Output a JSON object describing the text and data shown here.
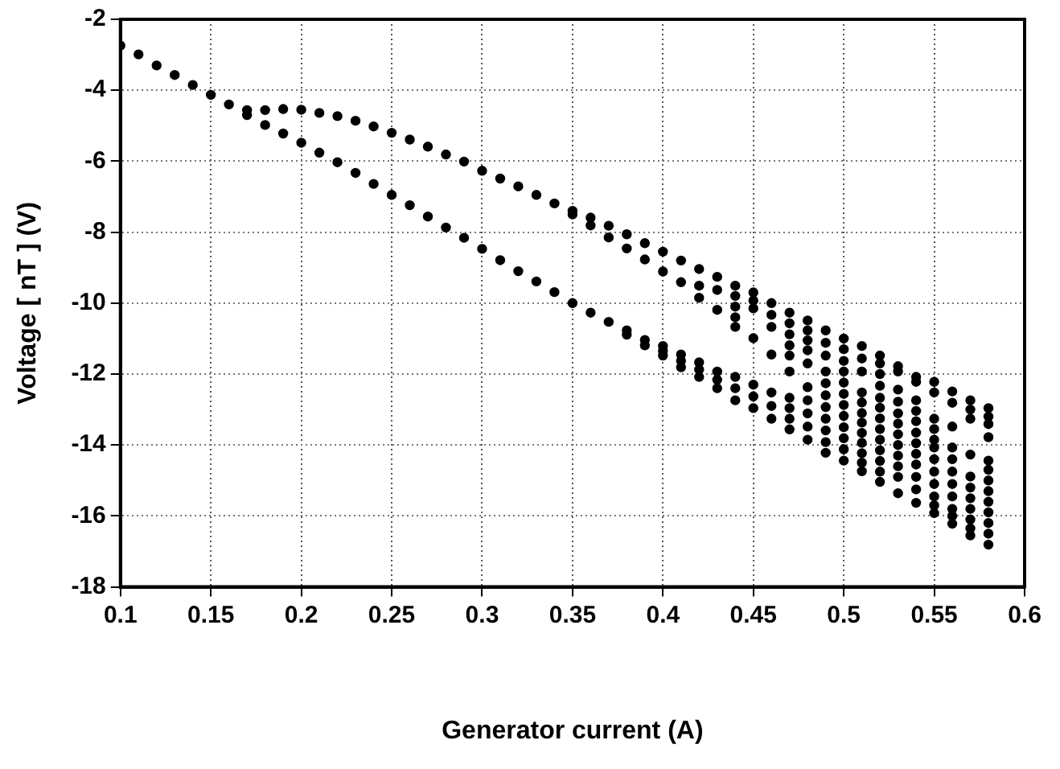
{
  "chart_data": {
    "type": "scatter",
    "xlabel": "Generator current (A)",
    "ylabel": "Voltage [ nT ] (V)",
    "xlim": [
      0.1,
      0.6
    ],
    "xticks": [
      0.1,
      0.15,
      0.2,
      0.25,
      0.3,
      0.35,
      0.4,
      0.45,
      0.5,
      0.55,
      0.6
    ],
    "ylim": [
      -18,
      -2
    ],
    "yticks": [
      -18,
      -16,
      -14,
      -12,
      -10,
      -8,
      -6,
      -4,
      -2
    ],
    "grid": true,
    "marker": "circle",
    "series": [
      {
        "color": "#000000",
        "x": [
          0.1,
          0.11,
          0.12,
          0.13,
          0.14,
          0.15,
          0.16,
          0.17,
          0.17,
          0.18,
          0.18,
          0.19,
          0.19,
          0.2,
          0.2,
          0.21,
          0.21,
          0.22,
          0.22,
          0.23,
          0.23,
          0.24,
          0.24,
          0.25,
          0.25,
          0.26,
          0.26,
          0.27,
          0.27,
          0.28,
          0.28,
          0.29,
          0.29,
          0.3,
          0.3,
          0.31,
          0.31,
          0.32,
          0.32,
          0.33,
          0.33,
          0.34,
          0.34,
          0.35,
          0.35,
          0.35,
          0.36,
          0.36,
          0.36,
          0.37,
          0.37,
          0.37,
          0.38,
          0.38,
          0.38,
          0.38,
          0.39,
          0.39,
          0.39,
          0.39,
          0.4,
          0.4,
          0.4,
          0.4,
          0.4,
          0.41,
          0.41,
          0.41,
          0.41,
          0.41,
          0.42,
          0.42,
          0.42,
          0.42,
          0.42,
          0.42,
          0.43,
          0.43,
          0.43,
          0.43,
          0.43,
          0.43,
          0.44,
          0.44,
          0.44,
          0.44,
          0.44,
          0.44,
          0.44,
          0.44,
          0.45,
          0.45,
          0.45,
          0.45,
          0.45,
          0.45,
          0.45,
          0.46,
          0.46,
          0.46,
          0.46,
          0.46,
          0.46,
          0.46,
          0.47,
          0.47,
          0.47,
          0.47,
          0.47,
          0.47,
          0.47,
          0.47,
          0.47,
          0.47,
          0.48,
          0.48,
          0.48,
          0.48,
          0.48,
          0.48,
          0.48,
          0.48,
          0.48,
          0.48,
          0.49,
          0.49,
          0.49,
          0.49,
          0.49,
          0.49,
          0.49,
          0.49,
          0.49,
          0.49,
          0.49,
          0.5,
          0.5,
          0.5,
          0.5,
          0.5,
          0.5,
          0.5,
          0.5,
          0.5,
          0.5,
          0.5,
          0.5,
          0.51,
          0.51,
          0.51,
          0.51,
          0.51,
          0.51,
          0.51,
          0.51,
          0.51,
          0.51,
          0.51,
          0.51,
          0.52,
          0.52,
          0.52,
          0.52,
          0.52,
          0.52,
          0.52,
          0.52,
          0.52,
          0.52,
          0.52,
          0.52,
          0.52,
          0.53,
          0.53,
          0.53,
          0.53,
          0.53,
          0.53,
          0.53,
          0.53,
          0.53,
          0.53,
          0.53,
          0.53,
          0.54,
          0.54,
          0.54,
          0.54,
          0.54,
          0.54,
          0.54,
          0.54,
          0.54,
          0.54,
          0.54,
          0.54,
          0.55,
          0.55,
          0.55,
          0.55,
          0.55,
          0.55,
          0.55,
          0.55,
          0.55,
          0.55,
          0.55,
          0.55,
          0.56,
          0.56,
          0.56,
          0.56,
          0.56,
          0.56,
          0.56,
          0.56,
          0.56,
          0.56,
          0.56,
          0.57,
          0.57,
          0.57,
          0.57,
          0.57,
          0.57,
          0.57,
          0.57,
          0.57,
          0.57,
          0.57,
          0.58,
          0.58,
          0.58,
          0.58,
          0.58,
          0.58,
          0.58,
          0.58,
          0.58,
          0.58,
          0.58,
          0.58,
          0.58
        ],
        "values": [
          -2.74,
          -2.99,
          -3.3,
          -3.57,
          -3.85,
          -4.13,
          -4.4,
          -4.56,
          -4.7,
          -4.56,
          -4.98,
          -4.53,
          -5.22,
          -4.55,
          -5.48,
          -4.64,
          -5.76,
          -4.73,
          -6.03,
          -4.86,
          -6.33,
          -5.02,
          -6.64,
          -5.2,
          -6.95,
          -5.39,
          -7.24,
          -5.59,
          -7.56,
          -5.81,
          -7.87,
          -6.01,
          -8.16,
          -6.27,
          -8.47,
          -6.49,
          -8.79,
          -6.71,
          -9.1,
          -6.95,
          -9.39,
          -7.19,
          -9.69,
          -7.4,
          -7.5,
          -10.0,
          -7.59,
          -7.81,
          -10.27,
          -7.82,
          -8.15,
          -10.53,
          -8.06,
          -8.46,
          -10.77,
          -10.89,
          -8.31,
          -8.77,
          -11.04,
          -11.19,
          -8.55,
          -9.11,
          -11.21,
          -11.35,
          -11.48,
          -8.8,
          -9.41,
          -11.45,
          -11.63,
          -11.81,
          -9.04,
          -9.51,
          -9.85,
          -11.67,
          -11.87,
          -12.08,
          -9.26,
          -9.63,
          -10.19,
          -11.93,
          -12.16,
          -12.4,
          -9.51,
          -9.8,
          -10.1,
          -10.4,
          -10.67,
          -12.08,
          -12.4,
          -12.74,
          -9.7,
          -9.93,
          -10.15,
          -10.99,
          -12.3,
          -12.63,
          -12.96,
          -10.0,
          -10.33,
          -10.67,
          -11.45,
          -12.52,
          -12.9,
          -13.26,
          -10.27,
          -10.57,
          -10.88,
          -11.19,
          -11.48,
          -11.93,
          -12.67,
          -12.96,
          -13.26,
          -13.56,
          -10.49,
          -10.77,
          -11.05,
          -11.33,
          -11.7,
          -12.37,
          -12.74,
          -13.11,
          -13.48,
          -13.85,
          -10.77,
          -11.12,
          -11.48,
          -11.93,
          -12.26,
          -12.6,
          -12.93,
          -13.26,
          -13.59,
          -13.92,
          -14.22,
          -11.0,
          -11.3,
          -11.63,
          -11.93,
          -12.24,
          -12.56,
          -12.87,
          -13.18,
          -13.5,
          -13.81,
          -14.12,
          -14.44,
          -11.21,
          -11.56,
          -11.93,
          -12.52,
          -12.8,
          -13.1,
          -13.37,
          -13.66,
          -13.94,
          -14.23,
          -14.5,
          -14.74,
          -11.48,
          -11.7,
          -12.0,
          -12.33,
          -12.67,
          -12.95,
          -13.25,
          -13.55,
          -13.85,
          -14.15,
          -14.45,
          -14.75,
          -15.04,
          -11.78,
          -11.93,
          -12.44,
          -12.78,
          -13.11,
          -13.4,
          -13.7,
          -14.0,
          -14.3,
          -14.6,
          -14.9,
          -15.36,
          -12.08,
          -12.22,
          -12.74,
          -13.04,
          -13.33,
          -13.65,
          -13.95,
          -14.25,
          -14.55,
          -14.9,
          -15.25,
          -15.63,
          -12.22,
          -12.52,
          -13.26,
          -13.55,
          -13.85,
          -14.07,
          -14.4,
          -14.75,
          -15.1,
          -15.45,
          -15.7,
          -15.92,
          -12.49,
          -12.81,
          -13.48,
          -14.07,
          -14.4,
          -14.75,
          -15.1,
          -15.45,
          -15.8,
          -16.0,
          -16.22,
          -12.74,
          -13.0,
          -13.26,
          -14.27,
          -14.89,
          -15.2,
          -15.5,
          -15.8,
          -16.1,
          -16.35,
          -16.55,
          -12.96,
          -13.2,
          -13.41,
          -13.78,
          -14.44,
          -14.7,
          -15.0,
          -15.3,
          -15.6,
          -15.9,
          -16.2,
          -16.5,
          -16.81
        ]
      }
    ]
  }
}
